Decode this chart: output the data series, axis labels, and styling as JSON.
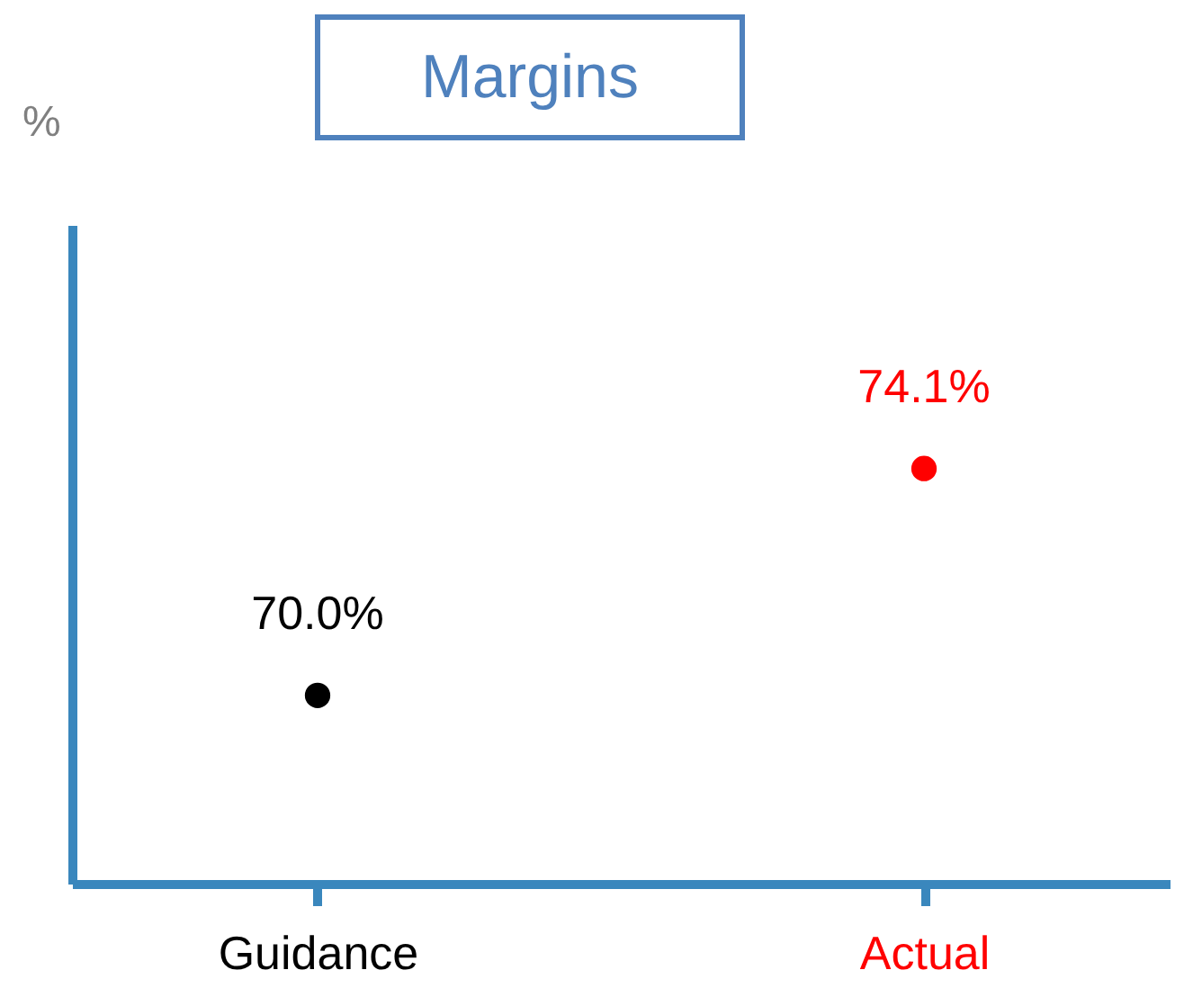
{
  "chart_data": {
    "type": "scatter",
    "title": "Margins",
    "ylabel": "%",
    "categories": [
      "Guidance",
      "Actual"
    ],
    "values": [
      70.0,
      74.1
    ],
    "colors": [
      "#000000",
      "#ff0000"
    ],
    "value_labels": [
      "70.0%",
      "74.1%"
    ],
    "ylim": [
      66.6,
      78.5
    ],
    "tick_labels": "x",
    "marker": "circle",
    "grid": false
  }
}
